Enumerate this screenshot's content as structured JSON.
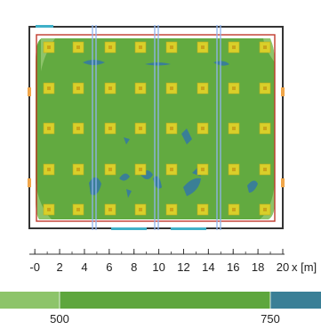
{
  "chart_data": {
    "type": "heatmap",
    "title": "",
    "x_axis": {
      "range": [
        -1,
        21
      ],
      "ticks": [
        0,
        2,
        4,
        6,
        8,
        10,
        12,
        14,
        16,
        18,
        20
      ],
      "tick_labels": [
        "-0",
        "2",
        "4",
        "6",
        "8",
        "10",
        "12",
        "14",
        "16",
        "18",
        "20"
      ],
      "unit": "x [m]"
    },
    "room": {
      "x_range": [
        0,
        20
      ],
      "y_range": [
        0,
        14
      ]
    },
    "lights": {
      "columns_x": [
        1,
        3.3,
        5.7,
        8,
        10.3,
        12.7,
        15,
        17.3,
        19.5
      ],
      "rows_y": [
        1,
        4,
        7,
        10,
        13
      ]
    },
    "legend": {
      "bands": [
        {
          "color": "#8dc46a",
          "from": 0,
          "to": 500
        },
        {
          "color": "#5ea63d",
          "from": 500,
          "to": 750
        },
        {
          "color": "#3a7f96",
          "from": 750,
          "to": 1000
        }
      ],
      "labels": [
        "500",
        "750"
      ]
    },
    "colors": {
      "frame": "#333333",
      "inner_frame": "#c0392b",
      "field": "#62aa40",
      "light": "#d9cf2a",
      "light_center": "#c9a419",
      "track": "#8fb3ef"
    }
  }
}
